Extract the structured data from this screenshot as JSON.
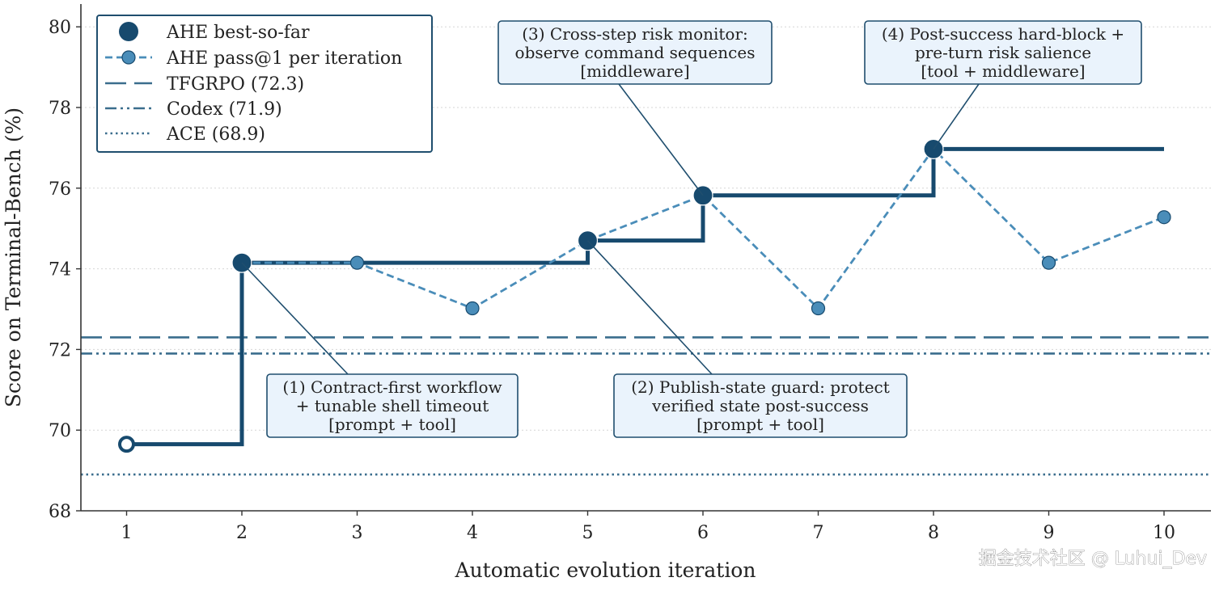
{
  "chart_data": {
    "type": "line",
    "xlabel": "Automatic evolution iteration",
    "ylabel": "Score on Terminal-Bench (%)",
    "xlim": [
      0.6,
      10.4
    ],
    "ylim": [
      68,
      80.6
    ],
    "x_ticks": [
      1,
      2,
      3,
      4,
      5,
      6,
      7,
      8,
      9,
      10
    ],
    "y_ticks": [
      68,
      70,
      72,
      74,
      76,
      78,
      80
    ],
    "grid": "horizontal dotted",
    "legend_position": "top-left",
    "colors": {
      "best": "#174a6e",
      "pass": "#4a8db9",
      "baseline": "#3a6d8d",
      "annot_fill": "#eaf3fc",
      "annot_edge": "#1f4e6e"
    },
    "series": [
      {
        "name": "AHE best-so-far",
        "style": "step",
        "x": [
          1,
          2,
          3,
          4,
          5,
          6,
          7,
          8,
          9,
          10
        ],
        "y": [
          69.65,
          74.15,
          74.15,
          74.15,
          74.7,
          75.82,
          75.82,
          76.97,
          76.97,
          76.97
        ],
        "markers_at": [
          2,
          5,
          6,
          8
        ],
        "start_marker": 1
      },
      {
        "name": "AHE pass@1 per iteration",
        "style": "dashed",
        "x": [
          3,
          4,
          5,
          6,
          7,
          8,
          9,
          10
        ],
        "y": [
          74.15,
          73.02,
          74.7,
          75.82,
          73.02,
          76.97,
          74.15,
          75.28
        ]
      }
    ],
    "baselines": [
      {
        "name": "TFGRPO (72.3)",
        "value": 72.3,
        "dash": "long"
      },
      {
        "name": "Codex (71.9)",
        "value": 71.9,
        "dash": "dashdot"
      },
      {
        "name": "ACE (68.9)",
        "value": 68.9,
        "dash": "dotted"
      }
    ],
    "annotations": [
      {
        "lines": [
          "(1) Contract-first workflow",
          "+ tunable shell timeout",
          "[prompt + tool]"
        ],
        "target": [
          2,
          74.15
        ]
      },
      {
        "lines": [
          "(2) Publish-state guard: protect",
          "verified state post-success",
          "[prompt + tool]"
        ],
        "target": [
          5,
          74.7
        ]
      },
      {
        "lines": [
          "(3) Cross-step risk monitor:",
          "observe command sequences",
          "[middleware]"
        ],
        "target": [
          6,
          75.82
        ]
      },
      {
        "lines": [
          "(4) Post-success hard-block +",
          "pre-turn risk salience",
          "[tool + middleware]"
        ],
        "target": [
          8,
          76.97
        ]
      }
    ]
  },
  "watermark": "掘金技术社区 @ Luhui_Dev"
}
